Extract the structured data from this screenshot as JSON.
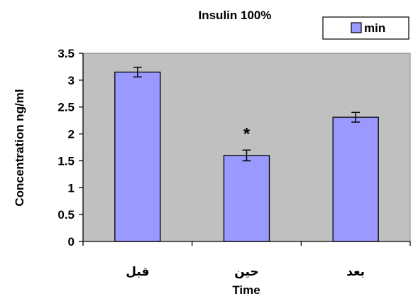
{
  "chart_data": {
    "type": "bar",
    "title": "Insulin 100%",
    "xlabel": "Time",
    "ylabel": "Concentration ng/ml",
    "categories": [
      "قبل",
      "حين",
      "بعد"
    ],
    "series": [
      {
        "name": "min",
        "values": [
          3.15,
          1.6,
          2.31
        ],
        "errors": [
          0.09,
          0.1,
          0.09
        ],
        "color": "#9999ff"
      }
    ],
    "annotations": [
      {
        "category_index": 1,
        "text": "*"
      }
    ],
    "ylim": [
      0,
      3.5
    ],
    "yticks": [
      0,
      0.5,
      1,
      1.5,
      2,
      2.5,
      3,
      3.5
    ],
    "ytick_labels": [
      "0",
      "0.5",
      "1",
      "1.5",
      "2",
      "2.5",
      "3",
      "3.5"
    ],
    "grid": false,
    "legend_position": "top-right",
    "plot_background": "#c0c0c0"
  }
}
